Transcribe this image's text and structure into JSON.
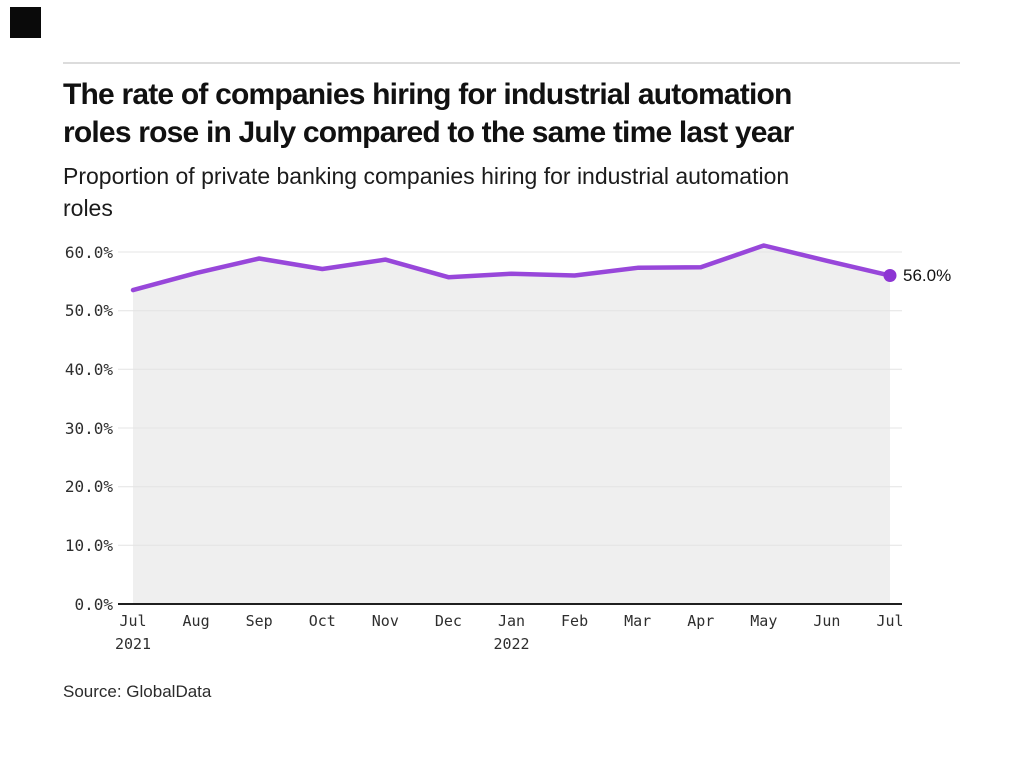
{
  "page": {
    "title_lines": [
      "The rate of companies hiring for industrial automation",
      "roles rose in July compared to the same time last year"
    ],
    "subtitle_lines": [
      "Proportion of private banking companies hiring for industrial automation",
      "roles"
    ],
    "source": "Source: GlobalData"
  },
  "colors": {
    "line": "#9847DA",
    "dot": "#8D35D3",
    "area_fill": "#efefef",
    "gridline": "#e4e4e4",
    "axis": "#1f1f1f",
    "logo": "#0a0a0a"
  },
  "chart_data": {
    "type": "area",
    "title": "The rate of companies hiring for industrial automation roles rose in July compared to the same time last year",
    "subtitle": "Proportion of private banking companies hiring for industrial automation roles",
    "source": "Source: GlobalData",
    "categories": [
      "Jul",
      "Aug",
      "Sep",
      "Oct",
      "Nov",
      "Dec",
      "Jan",
      "Feb",
      "Mar",
      "Apr",
      "May",
      "Jun",
      "Jul"
    ],
    "x_sub_labels": [
      {
        "index": 0,
        "label": "2021"
      },
      {
        "index": 6,
        "label": "2022"
      }
    ],
    "values": [
      53.5,
      56.4,
      58.9,
      57.1,
      58.7,
      55.7,
      56.3,
      56.0,
      57.3,
      57.4,
      61.1,
      58.5,
      56.0
    ],
    "yticks": [
      "60.0%",
      "50.0%",
      "40.0%",
      "30.0%",
      "20.0%",
      "10.0%",
      "0.0%"
    ],
    "ylim": [
      0,
      60
    ],
    "xlabel": "",
    "ylabel": "",
    "grid": "horizontal",
    "legend": "none",
    "end_label": "56.0%"
  }
}
